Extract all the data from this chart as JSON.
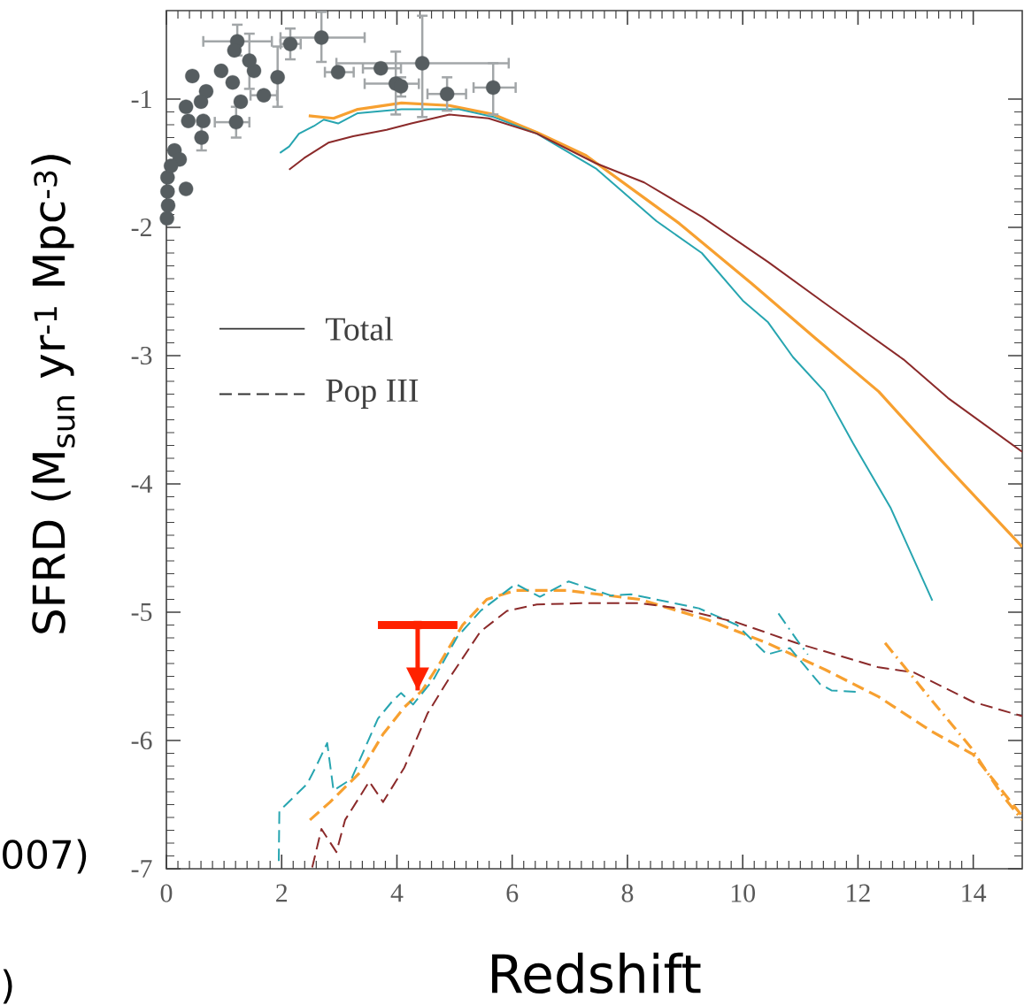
{
  "chart_data": {
    "type": "line",
    "xlabel": "Redshift",
    "ylabel": "SFRD (M$_{sun}$ yr$^{-1}$ Mpc$^{-3}$)",
    "xlim": [
      0,
      14.85
    ],
    "ylim": [
      -7,
      -0.31
    ],
    "xticks": [
      0,
      2,
      4,
      6,
      8,
      10,
      12,
      14
    ],
    "yticks": [
      -7,
      -6,
      -5,
      -4,
      -3,
      -2,
      -1
    ],
    "annotations": [
      "Total",
      "Pop III",
      "007)",
      ")"
    ],
    "series": [
      {
        "type": "line",
        "line_style": "solid",
        "color": "#f7a030",
        "x": [
          2.47,
          2.9,
          3.32,
          4.08,
          4.91,
          5.68,
          6.43,
          7.28,
          8.29,
          8.9,
          10.16,
          11.25,
          12.36,
          13.45,
          14.85
        ],
        "values": [
          -1.13,
          -1.15,
          -1.08,
          -1.03,
          -1.05,
          -1.12,
          -1.26,
          -1.44,
          -1.77,
          -1.97,
          -2.44,
          -2.86,
          -3.28,
          -3.82,
          -4.49
        ]
      },
      {
        "type": "line",
        "line_style": "solid",
        "color": "#27a5b0",
        "x": [
          1.97,
          2.13,
          2.3,
          2.56,
          2.73,
          2.98,
          3.32,
          4.08,
          5.08,
          5.68,
          6.43,
          7.45,
          8.5,
          9.29,
          10.0,
          10.44,
          10.87,
          11.42,
          11.91,
          12.57,
          13.29
        ],
        "values": [
          -1.42,
          -1.37,
          -1.27,
          -1.21,
          -1.16,
          -1.19,
          -1.11,
          -1.08,
          -1.08,
          -1.14,
          -1.27,
          -1.54,
          -1.95,
          -2.2,
          -2.57,
          -2.74,
          -3.01,
          -3.28,
          -3.68,
          -4.19,
          -4.91
        ]
      },
      {
        "type": "line",
        "line_style": "solid",
        "color": "#8b2a2a",
        "x": [
          2.13,
          2.39,
          2.81,
          3.24,
          3.82,
          4.25,
          4.91,
          5.59,
          6.43,
          7.45,
          8.29,
          9.3,
          10.44,
          11.42,
          12.79,
          13.56,
          14.85
        ],
        "values": [
          -1.55,
          -1.46,
          -1.34,
          -1.29,
          -1.24,
          -1.19,
          -1.12,
          -1.15,
          -1.27,
          -1.5,
          -1.65,
          -1.92,
          -2.27,
          -2.59,
          -3.03,
          -3.33,
          -3.75
        ]
      },
      {
        "type": "line",
        "line_style": "dashed",
        "color": "#f7a030",
        "x": [
          2.49,
          2.84,
          3.36,
          3.76,
          4.13,
          4.44,
          4.74,
          5.14,
          5.56,
          6.06,
          6.94,
          8.21,
          9.4,
          10.42,
          11.44,
          12.36,
          13.28,
          14.0,
          14.85
        ],
        "values": [
          -6.62,
          -6.48,
          -6.25,
          -5.95,
          -5.74,
          -5.61,
          -5.4,
          -5.1,
          -4.9,
          -4.83,
          -4.83,
          -4.9,
          -5.06,
          -5.24,
          -5.45,
          -5.66,
          -5.93,
          -6.11,
          -6.59
        ]
      },
      {
        "type": "line",
        "line_style": "dashed",
        "color": "#27a5b0",
        "x": [
          1.95,
          1.96,
          2.44,
          2.59,
          2.79,
          2.9,
          3.21,
          3.67,
          3.91,
          4.07,
          4.28,
          4.64,
          5.05,
          5.45,
          6.06,
          6.48,
          6.98,
          7.71,
          8.06,
          9.24,
          9.9,
          10.42,
          10.82,
          11.34,
          11.54,
          11.96
        ],
        "values": [
          -6.94,
          -6.55,
          -6.34,
          -6.21,
          -6.02,
          -6.39,
          -6.3,
          -5.83,
          -5.7,
          -5.63,
          -5.72,
          -5.52,
          -5.19,
          -4.99,
          -4.78,
          -4.88,
          -4.76,
          -4.87,
          -4.86,
          -4.97,
          -5.1,
          -5.33,
          -5.28,
          -5.56,
          -5.61,
          -5.62
        ]
      },
      {
        "type": "line",
        "line_style": "dashed",
        "color": "#8b2a2a",
        "x": [
          2.53,
          2.69,
          2.95,
          3.1,
          3.52,
          3.76,
          4.13,
          4.53,
          4.9,
          5.45,
          5.91,
          6.43,
          7.2,
          8.21,
          8.89,
          9.9,
          10.93,
          12.36,
          12.97,
          14.0,
          14.85
        ],
        "values": [
          -6.99,
          -6.69,
          -6.87,
          -6.62,
          -6.32,
          -6.48,
          -6.21,
          -5.79,
          -5.52,
          -5.15,
          -4.99,
          -4.94,
          -4.93,
          -4.93,
          -4.97,
          -5.08,
          -5.24,
          -5.43,
          -5.47,
          -5.7,
          -5.81
        ]
      },
      {
        "type": "line",
        "line_style": "dashdot",
        "color": "#f7a030",
        "x": [
          12.47,
          13.23,
          13.95,
          14.51,
          14.85
        ],
        "values": [
          -5.24,
          -5.66,
          -6.05,
          -6.43,
          -6.62
        ]
      },
      {
        "type": "line",
        "line_style": "dashdot",
        "color": "#27a5b0",
        "x": [
          10.62,
          10.93,
          11.13
        ],
        "values": [
          -5.01,
          -5.21,
          -5.33
        ]
      },
      {
        "type": "scatter",
        "marker": "circle",
        "color": "#565d60",
        "x": [
          1.23,
          2.15,
          2.69,
          2.98,
          3.72,
          3.98,
          4.07,
          4.44,
          4.87,
          5.67,
          1.93,
          1.69,
          1.52,
          1.44,
          1.21,
          1.29,
          1.18,
          1.15,
          0.95,
          0.45,
          0.69,
          0.6,
          0.34,
          0.38,
          0.64,
          0.61,
          0.14,
          0.23,
          0.34,
          0.02,
          0.02,
          0.01,
          0.08,
          0.03
        ],
        "values": [
          -0.55,
          -0.57,
          -0.52,
          -0.79,
          -0.76,
          -0.88,
          -0.9,
          -0.72,
          -0.96,
          -0.91,
          -0.83,
          -0.97,
          -0.78,
          -0.7,
          -1.18,
          -1.02,
          -0.62,
          -0.87,
          -0.78,
          -0.82,
          -0.94,
          -1.02,
          -1.06,
          -1.17,
          -1.17,
          -1.3,
          -1.4,
          -1.47,
          -1.7,
          -1.61,
          -1.72,
          -1.93,
          -1.52,
          -1.83
        ],
        "errors": [
          [
            -0.66,
            -0.42
          ],
          [
            -0.69,
            -0.45
          ],
          [
            -0.71,
            -0.32
          ],
          null,
          null,
          [
            -1.12,
            -0.63
          ],
          [
            -0.98,
            -0.83
          ],
          [
            -1.14,
            -0.35
          ],
          [
            -1.09,
            -0.83
          ],
          [
            -1.12,
            -0.72
          ],
          [
            -1.06,
            -0.59
          ],
          null,
          null,
          [
            -0.92,
            -0.49
          ],
          [
            -1.3,
            -1.06
          ],
          null,
          null,
          null,
          null,
          null,
          null,
          null,
          null,
          null,
          null,
          [
            -1.4,
            -1.2
          ],
          null,
          null,
          null,
          null,
          null,
          null,
          null,
          null
        ],
        "xerrors": [
          [
            0.64,
            1.83
          ],
          [
            1.98,
            2.33
          ],
          [
            1.98,
            3.44
          ],
          [
            2.75,
            3.25
          ],
          [
            3.41,
            4.07
          ],
          [
            3.44,
            4.38
          ],
          null,
          [
            2.95,
            5.94
          ],
          [
            4.53,
            5.2
          ],
          [
            5.33,
            6.06
          ],
          null,
          [
            1.46,
            1.92
          ],
          null,
          null,
          [
            0.84,
            1.44
          ],
          null,
          null,
          null,
          null,
          null,
          null,
          null,
          null,
          null,
          null,
          null,
          null,
          null,
          null,
          null,
          null,
          null,
          null,
          null
        ]
      },
      {
        "type": "scatter",
        "marker": "square",
        "color": "#ff2200",
        "x": [
          4.36
        ],
        "values": [
          -5.1
        ],
        "errors": [
          [
            -5.61,
            -5.1
          ]
        ],
        "xerrors": [
          [
            3.67,
            5.05
          ]
        ]
      }
    ]
  }
}
